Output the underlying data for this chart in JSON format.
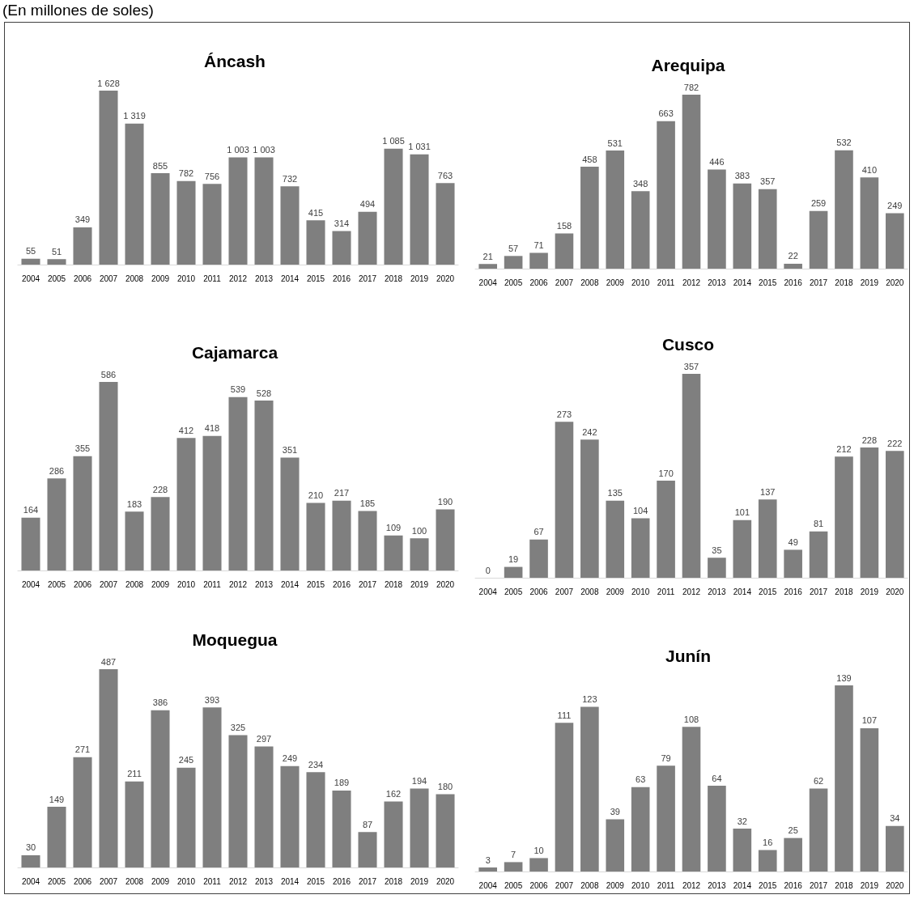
{
  "chart_data": [
    {
      "type": "bar",
      "title": "Áncash",
      "annotations": [
        "(En millones de soles)"
      ],
      "categories": [
        "2004",
        "2005",
        "2006",
        "2007",
        "2008",
        "2009",
        "2010",
        "2011",
        "2012",
        "2013",
        "2014",
        "2015",
        "2016",
        "2017",
        "2018",
        "2019",
        "2020"
      ],
      "values": [
        55,
        51,
        349,
        1628,
        1319,
        855,
        782,
        756,
        1003,
        1003,
        732,
        415,
        314,
        494,
        1085,
        1031,
        763
      ],
      "value_labels": [
        "55",
        "51",
        "349",
        "1 628",
        "1 319",
        "855",
        "782",
        "756",
        "1 003",
        "1 003",
        "732",
        "415",
        "314",
        "494",
        "1 085",
        "1 031",
        "763"
      ],
      "color": "#7f7f7f",
      "tick_labels": "x"
    },
    {
      "type": "bar",
      "title": "Arequipa",
      "categories": [
        "2004",
        "2005",
        "2006",
        "2007",
        "2008",
        "2009",
        "2010",
        "2011",
        "2012",
        "2013",
        "2014",
        "2015",
        "2016",
        "2017",
        "2018",
        "2019",
        "2020"
      ],
      "values": [
        21,
        57,
        71,
        158,
        458,
        531,
        348,
        663,
        782,
        446,
        383,
        357,
        22,
        259,
        532,
        410,
        249
      ],
      "data_labels": true,
      "color": "#7f7f7f",
      "tick_labels": "x"
    },
    {
      "type": "bar",
      "title": "Cajamarca",
      "categories": [
        "2004",
        "2005",
        "2006",
        "2007",
        "2008",
        "2009",
        "2010",
        "2011",
        "2012",
        "2013",
        "2014",
        "2015",
        "2016",
        "2017",
        "2018",
        "2019",
        "2020"
      ],
      "values": [
        164,
        286,
        355,
        586,
        183,
        228,
        412,
        418,
        539,
        528,
        351,
        210,
        217,
        185,
        109,
        100,
        190
      ],
      "data_labels": true,
      "color": "#7f7f7f",
      "tick_labels": "x"
    },
    {
      "type": "bar",
      "title": "Cusco",
      "categories": [
        "2004",
        "2005",
        "2006",
        "2007",
        "2008",
        "2009",
        "2010",
        "2011",
        "2012",
        "2013",
        "2014",
        "2015",
        "2016",
        "2017",
        "2018",
        "2019",
        "2020"
      ],
      "values": [
        0,
        19,
        67,
        273,
        242,
        135,
        104,
        170,
        357,
        35,
        101,
        137,
        49,
        81,
        212,
        228,
        222
      ],
      "data_labels": true,
      "color": "#7f7f7f",
      "tick_labels": "x"
    },
    {
      "type": "bar",
      "title": "Moquegua",
      "categories": [
        "2004",
        "2005",
        "2006",
        "2007",
        "2008",
        "2009",
        "2010",
        "2011",
        "2012",
        "2013",
        "2014",
        "2015",
        "2016",
        "2017",
        "2018",
        "2019",
        "2020"
      ],
      "values": [
        30,
        149,
        271,
        487,
        211,
        386,
        245,
        393,
        325,
        297,
        249,
        234,
        189,
        87,
        162,
        194,
        180
      ],
      "data_labels": true,
      "color": "#7f7f7f",
      "tick_labels": "x"
    },
    {
      "type": "bar",
      "title": "Junín",
      "categories": [
        "2004",
        "2005",
        "2006",
        "2007",
        "2008",
        "2009",
        "2010",
        "2011",
        "2012",
        "2013",
        "2014",
        "2015",
        "2016",
        "2017",
        "2018",
        "2019",
        "2020"
      ],
      "values": [
        3,
        7,
        10,
        111,
        123,
        39,
        63,
        79,
        108,
        64,
        32,
        16,
        25,
        62,
        139,
        107,
        34
      ],
      "data_labels": true,
      "color": "#7f7f7f",
      "tick_labels": "x"
    }
  ]
}
